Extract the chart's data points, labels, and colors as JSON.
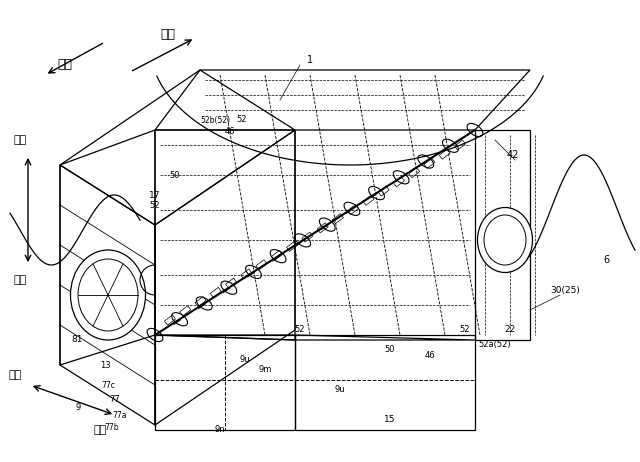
{
  "bg_color": "#ffffff",
  "line_color": "#000000",
  "fig_width": 6.4,
  "fig_height": 4.62,
  "dpi": 100,
  "labels": {
    "kougo": "後側",
    "maeso": "前側",
    "ueside": "上側",
    "shitaside": "下側",
    "migiside": "右側",
    "hidaride": "左側",
    "n1": "1",
    "n6": "6",
    "n9": "9",
    "n9m": "9m",
    "n9n": "9n",
    "n9u1": "9u",
    "n9u2": "9u",
    "n13": "13",
    "n15": "15",
    "n17": "17",
    "n22": "22",
    "n25": "30(25)",
    "n30": "30(25)",
    "n42": "42",
    "n46a": "46",
    "n46b": "46",
    "n50a": "50",
    "n50b": "50",
    "n52": "52",
    "n52_2": "52",
    "n52_3": "52",
    "n52_4": "52",
    "n52a": "52a(52)",
    "n52b": "52b(52)",
    "n52_top": "52",
    "n77": "77",
    "n77a": "77a",
    "n77b": "77b",
    "n77c": "77c",
    "n81": "81"
  }
}
